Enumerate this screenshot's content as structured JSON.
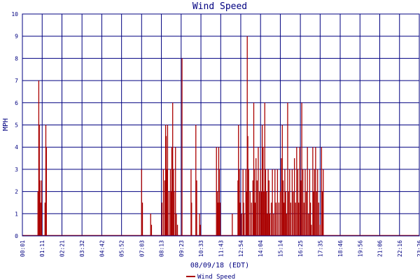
{
  "chart_data": {
    "type": "bar",
    "title": "Wind Speed",
    "xlabel": "08/09/18 (EDT)",
    "ylabel": "MPH",
    "ylim": [
      0,
      10
    ],
    "yticks": [
      "0",
      "1",
      "2",
      "3",
      "4",
      "5",
      "6",
      "7",
      "8",
      "9",
      "10"
    ],
    "xticks": [
      "00:01",
      "01:11",
      "02:21",
      "03:32",
      "04:42",
      "05:52",
      "07:03",
      "08:13",
      "09:23",
      "10:33",
      "11:43",
      "12:54",
      "14:04",
      "15:14",
      "16:25",
      "17:35",
      "18:46",
      "19:56",
      "21:06",
      "22:16",
      "23:26"
    ],
    "grid": true,
    "legend": "bottom-center",
    "colors": {
      "series": "#aa0000",
      "grid": "#000080",
      "axis_text": "#000080",
      "background": "#ffffff"
    },
    "series": [
      {
        "name": "Wind Speed",
        "points": [
          [
            "00:56",
            2
          ],
          [
            "00:59",
            7
          ],
          [
            "01:01",
            5
          ],
          [
            "01:03",
            2.5
          ],
          [
            "01:06",
            1.5
          ],
          [
            "01:09",
            2.5
          ],
          [
            "01:21",
            1.5
          ],
          [
            "01:24",
            5
          ],
          [
            "01:26",
            4
          ],
          [
            "07:03",
            3
          ],
          [
            "07:06",
            1.5
          ],
          [
            "07:35",
            1
          ],
          [
            "07:38",
            0.5
          ],
          [
            "08:15",
            1.5
          ],
          [
            "08:20",
            3
          ],
          [
            "08:25",
            2.5
          ],
          [
            "08:28",
            5
          ],
          [
            "08:30",
            4.5
          ],
          [
            "08:33",
            3
          ],
          [
            "08:35",
            5
          ],
          [
            "08:40",
            2
          ],
          [
            "08:45",
            3
          ],
          [
            "08:48",
            2
          ],
          [
            "08:50",
            4
          ],
          [
            "08:53",
            6
          ],
          [
            "08:56",
            3
          ],
          [
            "08:58",
            2
          ],
          [
            "09:03",
            4
          ],
          [
            "09:06",
            1
          ],
          [
            "09:10",
            0.5
          ],
          [
            "09:26",
            8
          ],
          [
            "09:58",
            3
          ],
          [
            "10:00",
            1.5
          ],
          [
            "10:15",
            5
          ],
          [
            "10:18",
            2.5
          ],
          [
            "10:28",
            1
          ],
          [
            "10:31",
            0.5
          ],
          [
            "11:28",
            4
          ],
          [
            "11:31",
            2
          ],
          [
            "11:33",
            1.5
          ],
          [
            "11:36",
            4
          ],
          [
            "11:38",
            3
          ],
          [
            "11:41",
            1.5
          ],
          [
            "12:24",
            1
          ],
          [
            "12:44",
            2.5
          ],
          [
            "12:46",
            5
          ],
          [
            "12:49",
            3
          ],
          [
            "12:52",
            1.5
          ],
          [
            "12:57",
            1
          ],
          [
            "13:02",
            3
          ],
          [
            "13:04",
            1.5
          ],
          [
            "13:06",
            1
          ],
          [
            "13:12",
            3
          ],
          [
            "13:14",
            2
          ],
          [
            "13:17",
            9
          ],
          [
            "13:19",
            4.5
          ],
          [
            "13:22",
            3
          ],
          [
            "13:27",
            2
          ],
          [
            "13:32",
            1.5
          ],
          [
            "13:37",
            2.5
          ],
          [
            "13:40",
            6
          ],
          [
            "13:42",
            3
          ],
          [
            "13:45",
            1.5
          ],
          [
            "13:48",
            3.5
          ],
          [
            "13:52",
            2.5
          ],
          [
            "13:56",
            4
          ],
          [
            "14:00",
            2
          ],
          [
            "14:04",
            3
          ],
          [
            "14:07",
            2
          ],
          [
            "14:10",
            5
          ],
          [
            "14:13",
            4
          ],
          [
            "14:16",
            2
          ],
          [
            "14:19",
            6
          ],
          [
            "14:22",
            3
          ],
          [
            "14:25",
            2
          ],
          [
            "14:28",
            1
          ],
          [
            "14:31",
            3
          ],
          [
            "14:34",
            2.5
          ],
          [
            "14:37",
            1
          ],
          [
            "14:42",
            1.5
          ],
          [
            "14:46",
            3
          ],
          [
            "14:50",
            1
          ],
          [
            "14:55",
            3
          ],
          [
            "14:59",
            1.5
          ],
          [
            "15:04",
            3
          ],
          [
            "15:09",
            1.5
          ],
          [
            "15:14",
            2
          ],
          [
            "15:18",
            3.5
          ],
          [
            "15:21",
            5
          ],
          [
            "15:24",
            2.5
          ],
          [
            "15:27",
            1.5
          ],
          [
            "15:30",
            3
          ],
          [
            "15:33",
            2
          ],
          [
            "15:36",
            1
          ],
          [
            "15:40",
            6
          ],
          [
            "15:43",
            2
          ],
          [
            "15:47",
            3
          ],
          [
            "15:51",
            1.5
          ],
          [
            "15:56",
            3
          ],
          [
            "16:00",
            2
          ],
          [
            "16:04",
            3.5
          ],
          [
            "16:08",
            1.5
          ],
          [
            "16:12",
            4
          ],
          [
            "16:16",
            3
          ],
          [
            "16:19",
            1.5
          ],
          [
            "16:23",
            4
          ],
          [
            "16:27",
            2.5
          ],
          [
            "16:30",
            6
          ],
          [
            "16:34",
            3
          ],
          [
            "16:38",
            1.5
          ],
          [
            "16:42",
            3
          ],
          [
            "16:46",
            2
          ],
          [
            "16:50",
            4
          ],
          [
            "16:54",
            1
          ],
          [
            "16:58",
            3
          ],
          [
            "17:01",
            1.5
          ],
          [
            "17:04",
            0.5
          ],
          [
            "17:09",
            4
          ],
          [
            "17:12",
            2
          ],
          [
            "17:15",
            3
          ],
          [
            "17:19",
            4
          ],
          [
            "17:22",
            2
          ],
          [
            "17:26",
            3
          ],
          [
            "17:30",
            1.5
          ],
          [
            "17:35",
            0.5
          ],
          [
            "17:40",
            4
          ],
          [
            "17:43",
            2
          ],
          [
            "17:46",
            3
          ]
        ]
      }
    ]
  }
}
